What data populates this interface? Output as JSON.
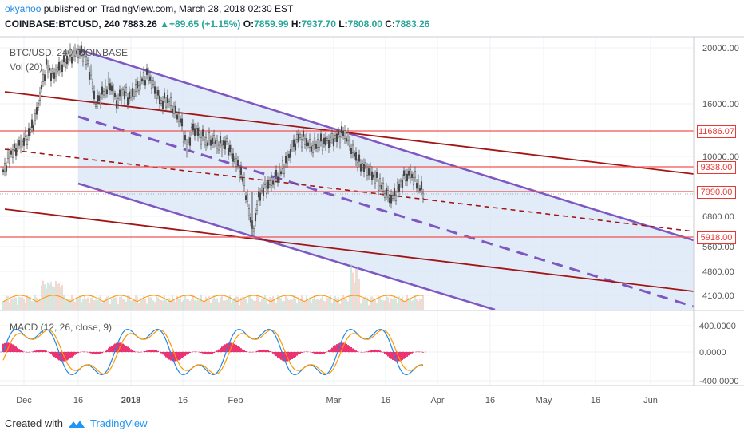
{
  "header": {
    "user": "okyahoo",
    "published": " published on TradingView.com, March 28, 2018 02:30 EST",
    "symbol_line": "COINBASE:BTCUSD, 240",
    "last": "7883.26",
    "change_arrow": "▲",
    "change": "+89.65 (+1.15%)",
    "o_label": "O:",
    "o": "7859.99",
    "h_label": "H:",
    "h": "7937.70",
    "l_label": "L:",
    "l": "7808.00",
    "c_label": "C:",
    "c": "7883.26"
  },
  "labels": {
    "symbol": "BTC/USD, 240, COINBASE",
    "volume": "Vol (20)",
    "macd": "MACD (12, 26, close, 9)"
  },
  "footer": {
    "created_with": "Created with",
    "brand": "TradingView"
  },
  "colors": {
    "channel_purple": "#7e57c2",
    "channel_fill": "#dbe7f6",
    "trend_red": "#a31515",
    "level_red": "#ef5350",
    "macd_blue": "#1e88e5",
    "signal_orange": "#ff9800",
    "hist_pink": "#e91e63",
    "candle_gray": "#555555"
  },
  "chart_data": {
    "type": "candlestick",
    "x_axis": {
      "ticks": [
        "Dec",
        "16",
        "2018",
        "16",
        "Feb",
        "Mar",
        "16",
        "Apr",
        "16",
        "May",
        "16",
        "Jun"
      ]
    },
    "price_axis": {
      "scale": "log",
      "ticks": [
        "20000.00",
        "16000.00",
        "10000.00",
        "6800.00",
        "5600.00",
        "4800.00",
        "4100.00"
      ]
    },
    "macd_axis": {
      "ticks": [
        "400.0000",
        "0.0000",
        "-400.0000"
      ]
    },
    "price_tags": [
      "11686.07",
      "9338.00",
      "7990.00",
      "5918.00"
    ],
    "horizontal_levels": [
      11686.07,
      9338.0,
      7990.0,
      5918.0
    ],
    "last_price": 7883.26,
    "ohlc": {
      "open": 7859.99,
      "high": 7937.7,
      "low": 7808.0,
      "close": 7883.26
    }
  }
}
